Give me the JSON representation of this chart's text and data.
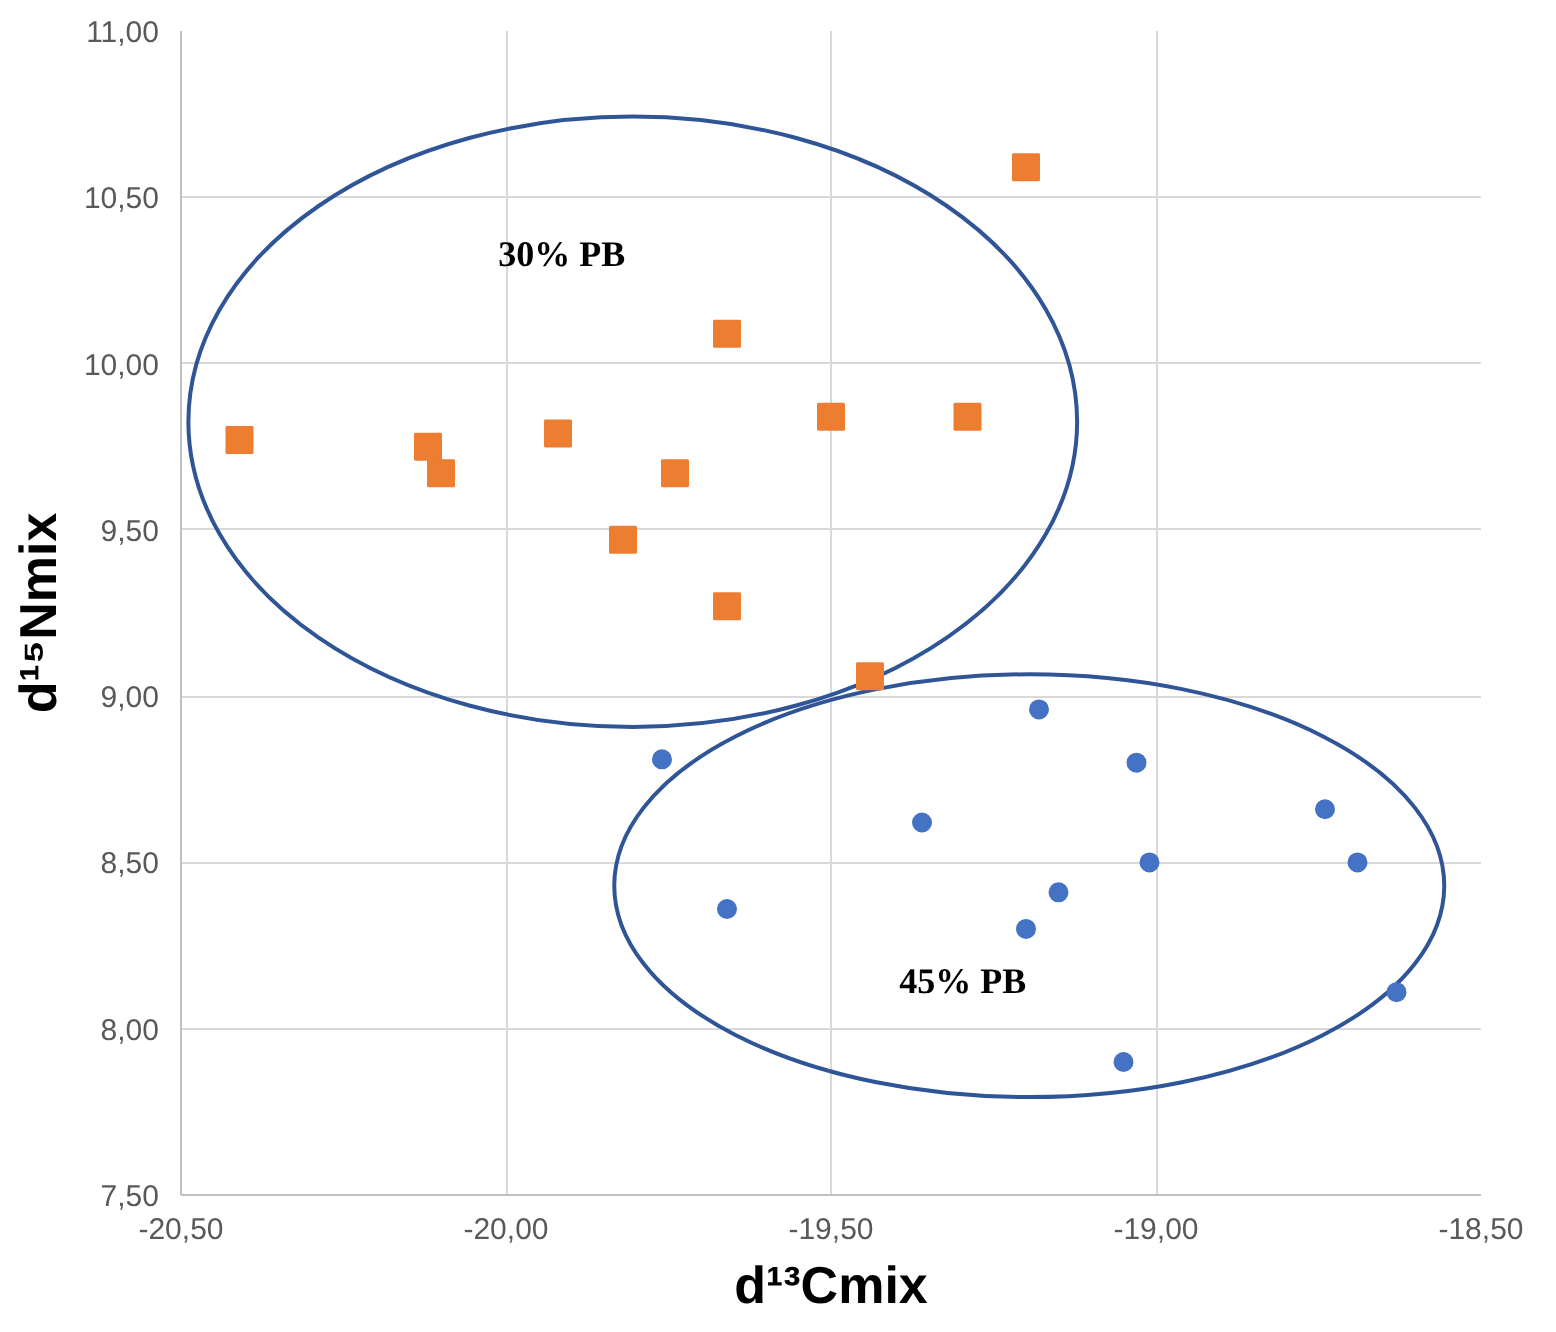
{
  "chart_data": {
    "type": "scatter",
    "xlabel": "d¹³Cmix",
    "ylabel": "d¹⁵Nmix",
    "xlim": [
      -20.5,
      -18.5
    ],
    "ylim": [
      7.5,
      11.0
    ],
    "xticks": [
      {
        "value": -20.5,
        "label": "-20,50"
      },
      {
        "value": -20.0,
        "label": "-20,00"
      },
      {
        "value": -19.5,
        "label": "-19,50"
      },
      {
        "value": -19.0,
        "label": "-19,00"
      },
      {
        "value": -18.5,
        "label": "-18,50"
      }
    ],
    "yticks": [
      {
        "value": 7.5,
        "label": "7,50"
      },
      {
        "value": 8.0,
        "label": "8,00"
      },
      {
        "value": 8.5,
        "label": "8,50"
      },
      {
        "value": 9.0,
        "label": "9,00"
      },
      {
        "value": 9.5,
        "label": "9,50"
      },
      {
        "value": 10.0,
        "label": "10,00"
      },
      {
        "value": 10.5,
        "label": "10,50"
      },
      {
        "value": 11.0,
        "label": "11,00"
      }
    ],
    "grid": true,
    "series": [
      {
        "color": "#ed7d31",
        "marker": "square",
        "x": [
          -20.41,
          -20.12,
          -20.1,
          -19.92,
          -19.74,
          -19.82,
          -19.66,
          -19.66,
          -19.5,
          -19.29,
          -19.44,
          -19.2
        ],
        "values": [
          9.77,
          9.75,
          9.67,
          9.79,
          9.67,
          9.47,
          10.09,
          9.27,
          9.84,
          9.84,
          9.06,
          10.59
        ]
      },
      {
        "color": "#4472c4",
        "marker": "circle",
        "x": [
          -19.76,
          -19.18,
          -19.03,
          -19.36,
          -18.74,
          -19.01,
          -18.69,
          -19.15,
          -19.66,
          -19.2,
          -18.63,
          -19.05
        ],
        "values": [
          8.81,
          8.96,
          8.8,
          8.62,
          8.66,
          8.5,
          8.5,
          8.41,
          8.36,
          8.3,
          8.11,
          7.9
        ]
      }
    ],
    "annotations": [
      "30% PB",
      "45% PB"
    ]
  }
}
